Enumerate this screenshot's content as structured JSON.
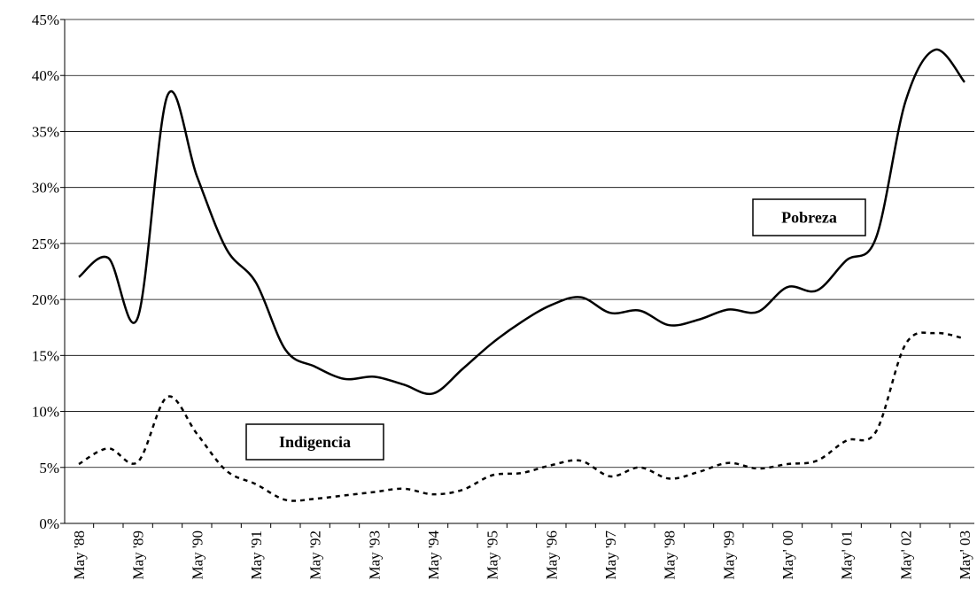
{
  "chart_data": {
    "type": "line",
    "categories": [
      "May '88",
      null,
      "May '89",
      null,
      "May '90",
      null,
      "May '91",
      null,
      "May '92",
      null,
      "May '93",
      null,
      "May '94",
      null,
      "May '95",
      null,
      "May '96",
      null,
      "May '97",
      null,
      "May '98",
      null,
      "May '99",
      null,
      "May' 00",
      null,
      "May' 01",
      null,
      "May' 02",
      null,
      "May' 03"
    ],
    "series": [
      {
        "name": "Pobreza",
        "color": "#000000",
        "dash": false,
        "values": [
          22.0,
          23.7,
          18.4,
          38.2,
          31.0,
          24.5,
          21.5,
          15.5,
          14.0,
          12.9,
          13.1,
          12.4,
          11.6,
          13.8,
          16.1,
          18.0,
          19.5,
          20.2,
          18.8,
          19.0,
          17.7,
          18.2,
          19.1,
          18.9,
          21.1,
          20.8,
          23.5,
          25.5,
          37.7,
          42.3,
          39.4
        ]
      },
      {
        "name": "Indigencia",
        "color": "#000000",
        "dash": true,
        "values": [
          5.3,
          6.7,
          5.5,
          11.3,
          8.0,
          4.7,
          3.5,
          2.1,
          2.2,
          2.5,
          2.8,
          3.1,
          2.6,
          3.0,
          4.3,
          4.5,
          5.2,
          5.6,
          4.2,
          5.0,
          4.0,
          4.6,
          5.4,
          4.9,
          5.3,
          5.6,
          7.4,
          8.2,
          16.0,
          17.0,
          16.5
        ]
      }
    ],
    "ylim": [
      0,
      45
    ],
    "yticks": [
      {
        "value": 0,
        "label": "0%"
      },
      {
        "value": 5,
        "label": "5%"
      },
      {
        "value": 10,
        "label": "10%"
      },
      {
        "value": 15,
        "label": "15%"
      },
      {
        "value": 20,
        "label": "20%"
      },
      {
        "value": 25,
        "label": "25%"
      },
      {
        "value": 30,
        "label": "30%"
      },
      {
        "value": 35,
        "label": "35%"
      },
      {
        "value": 40,
        "label": "40%"
      },
      {
        "value": 45,
        "label": "45%"
      }
    ],
    "grid": true
  }
}
